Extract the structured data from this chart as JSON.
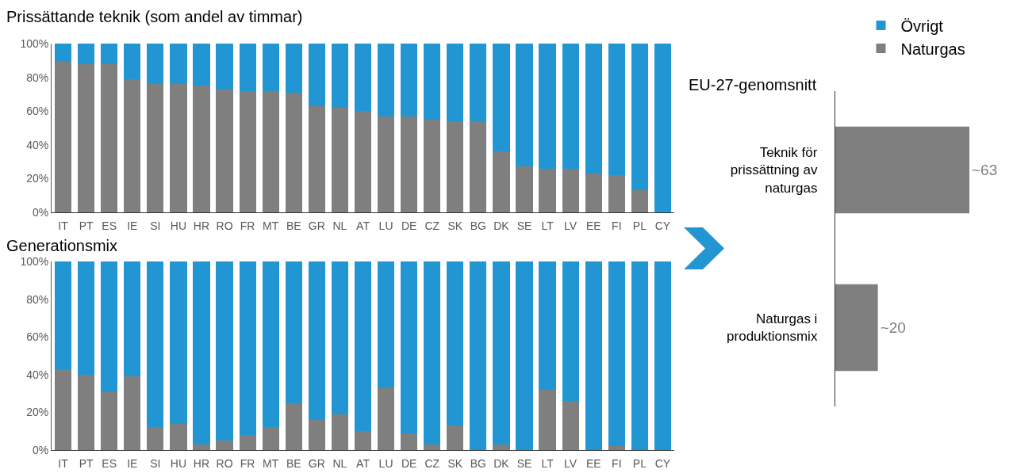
{
  "chart_data": [
    {
      "type": "bar",
      "title": "Prissättande teknik (som andel av timmar)",
      "stacked": true,
      "categories": [
        "IT",
        "PT",
        "ES",
        "IE",
        "SI",
        "HU",
        "HR",
        "RO",
        "FR",
        "MT",
        "BE",
        "GR",
        "NL",
        "AT",
        "LU",
        "DE",
        "CZ",
        "SK",
        "BG",
        "DK",
        "SE",
        "LT",
        "LV",
        "EE",
        "FI",
        "PL",
        "CY"
      ],
      "series": [
        {
          "name": "Naturgas",
          "color": "#7f7f7f",
          "values": [
            89,
            88,
            88,
            79,
            76,
            76,
            75,
            73,
            72,
            72,
            71,
            63,
            62,
            60,
            57,
            57,
            55,
            54,
            54,
            36,
            27,
            26,
            26,
            23,
            22,
            13,
            0
          ]
        },
        {
          "name": "Övrigt",
          "color": "#2196d3",
          "values": [
            11,
            12,
            12,
            21,
            24,
            24,
            25,
            27,
            28,
            28,
            29,
            37,
            38,
            40,
            43,
            43,
            45,
            46,
            46,
            64,
            73,
            74,
            74,
            77,
            78,
            87,
            100
          ]
        }
      ],
      "ylim": [
        0,
        100
      ],
      "yticks": [
        {
          "value": 0,
          "label": "0%"
        },
        {
          "value": 20,
          "label": "20%"
        },
        {
          "value": 40,
          "label": "40%"
        },
        {
          "value": 60,
          "label": "60%"
        },
        {
          "value": 80,
          "label": "80%"
        },
        {
          "value": 100,
          "label": "100%"
        }
      ],
      "legend": "top right"
    },
    {
      "type": "bar",
      "title": "Generationsmix",
      "stacked": true,
      "categories": [
        "IT",
        "PT",
        "ES",
        "IE",
        "SI",
        "HU",
        "HR",
        "RO",
        "FR",
        "MT",
        "BE",
        "GR",
        "NL",
        "AT",
        "LU",
        "DE",
        "CZ",
        "SK",
        "BG",
        "DK",
        "SE",
        "LT",
        "LV",
        "EE",
        "FI",
        "PL",
        "CY"
      ],
      "series": [
        {
          "color": "#7f7f7f",
          "values": [
            43,
            40,
            31,
            39,
            12,
            14,
            3,
            5,
            8,
            12,
            25,
            16,
            19,
            10,
            33,
            9,
            3,
            13,
            0,
            3,
            0,
            32,
            26,
            0,
            2,
            0,
            0
          ]
        },
        {
          "color": "#2196d3",
          "values": [
            57,
            60,
            69,
            61,
            88,
            86,
            97,
            95,
            92,
            88,
            75,
            84,
            81,
            90,
            67,
            91,
            97,
            87,
            100,
            97,
            100,
            68,
            74,
            100,
            98,
            100,
            100
          ]
        }
      ],
      "ylim": [
        0,
        100
      ],
      "yticks": [
        {
          "value": 0,
          "label": "0%"
        },
        {
          "value": 20,
          "label": "20%"
        },
        {
          "value": 40,
          "label": "40%"
        },
        {
          "value": 60,
          "label": "60%"
        },
        {
          "value": 80,
          "label": "80%"
        },
        {
          "value": 100,
          "label": "100%"
        }
      ]
    },
    {
      "type": "bar",
      "title": "EU-27-genomsnitt",
      "orientation": "horizontal",
      "categories": [
        "Teknik för prissättning av naturgas",
        "Naturgas i produktionsmix"
      ],
      "values": [
        63,
        20
      ],
      "color": "#7f7f7f",
      "value_labels": [
        "~63",
        "~20"
      ]
    }
  ]
}
